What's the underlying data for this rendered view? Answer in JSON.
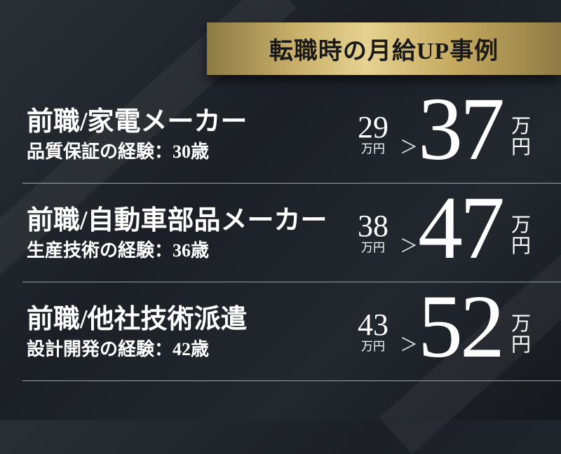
{
  "header": {
    "title": "転職時の月給UP事例"
  },
  "cases": [
    {
      "title": "前職/家電メーカー",
      "subtitle": "品質保証の経験：30歳",
      "before": "29",
      "before_unit": "万円",
      "arrow": "＞",
      "after": "37",
      "after_unit_1": "万",
      "after_unit_2": "円"
    },
    {
      "title": "前職/自動車部品メーカー",
      "subtitle": "生産技術の経験：36歳",
      "before": "38",
      "before_unit": "万円",
      "arrow": "＞",
      "after": "47",
      "after_unit_1": "万",
      "after_unit_2": "円"
    },
    {
      "title": "前職/他社技術派遣",
      "subtitle": "設計開発の経験：42歳",
      "before": "43",
      "before_unit": "万円",
      "arrow": "＞",
      "after": "52",
      "after_unit_1": "万",
      "after_unit_2": "円"
    }
  ],
  "colors": {
    "gold": "#d9c27f",
    "background": "#1f2329"
  }
}
